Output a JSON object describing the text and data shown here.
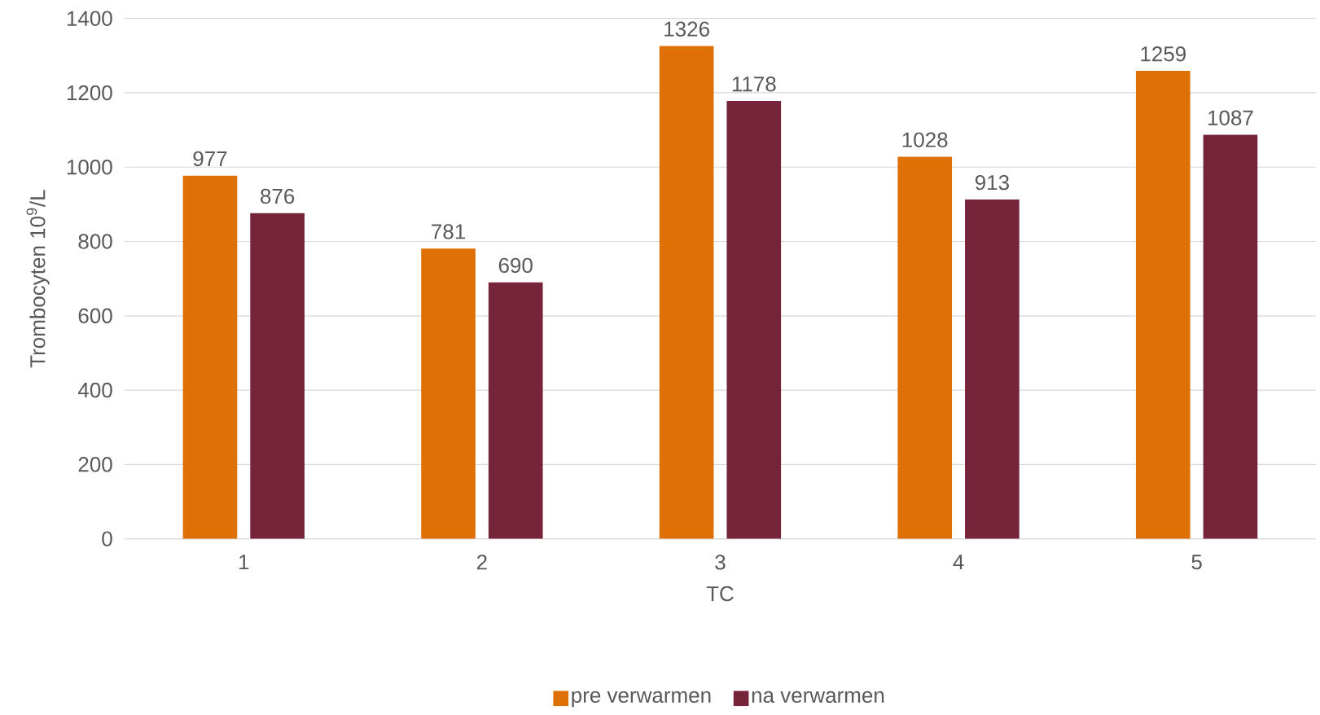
{
  "chart_data": {
    "type": "bar",
    "xlabel": "TC",
    "ylabel": "Trombocyten 10$^{9}$/L",
    "categories": [
      "1",
      "2",
      "3",
      "4",
      "5"
    ],
    "series": [
      {
        "name": "pre verwarmen",
        "color": "#de7006",
        "values": [
          977,
          781,
          1326,
          1028,
          1259
        ]
      },
      {
        "name": "na verwarmen",
        "color": "#76243a",
        "values": [
          876,
          690,
          1178,
          913,
          1087
        ]
      }
    ],
    "ylim": [
      0,
      1400
    ],
    "yticks": [
      0,
      200,
      400,
      600,
      800,
      1000,
      1200,
      1400
    ],
    "grid": "y",
    "legend": "bottom",
    "data_labels": true
  }
}
